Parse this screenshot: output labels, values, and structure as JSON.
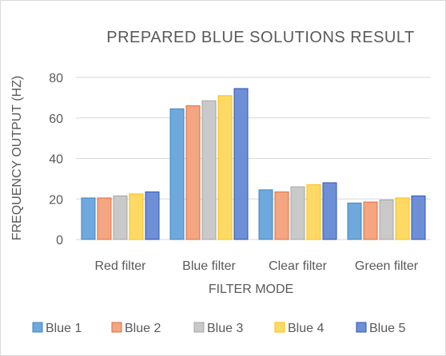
{
  "chart_data": {
    "type": "bar",
    "title": "PREPARED  BLUE SOLUTIONS RESULT",
    "xlabel": "FILTER MODE",
    "ylabel": "FREQUENCY OUTPUT (HZ)",
    "ylim": [
      0,
      80
    ],
    "yticks": [
      0,
      20,
      40,
      60,
      80
    ],
    "grid": true,
    "legend_position": "bottom",
    "categories": [
      "Red filter",
      "Blue filter",
      "Clear filter",
      "Green filter"
    ],
    "series": [
      {
        "name": "Blue 1",
        "color": "#6fa8dc",
        "edge": "#3d85c6",
        "values": [
          20.5,
          64.5,
          24.5,
          18.0
        ]
      },
      {
        "name": "Blue 2",
        "color": "#f4a582",
        "edge": "#e06c3c",
        "values": [
          20.5,
          66.0,
          23.5,
          18.5
        ]
      },
      {
        "name": "Blue 3",
        "color": "#c9c9c9",
        "edge": "#a5a5a5",
        "values": [
          21.5,
          68.5,
          26.0,
          19.5
        ]
      },
      {
        "name": "Blue 4",
        "color": "#ffd966",
        "edge": "#ffc000",
        "values": [
          22.5,
          71.0,
          27.0,
          20.5
        ]
      },
      {
        "name": "Blue 5",
        "color": "#6d8fd6",
        "edge": "#2f55b4",
        "values": [
          23.5,
          74.5,
          28.0,
          21.5
        ]
      }
    ]
  }
}
